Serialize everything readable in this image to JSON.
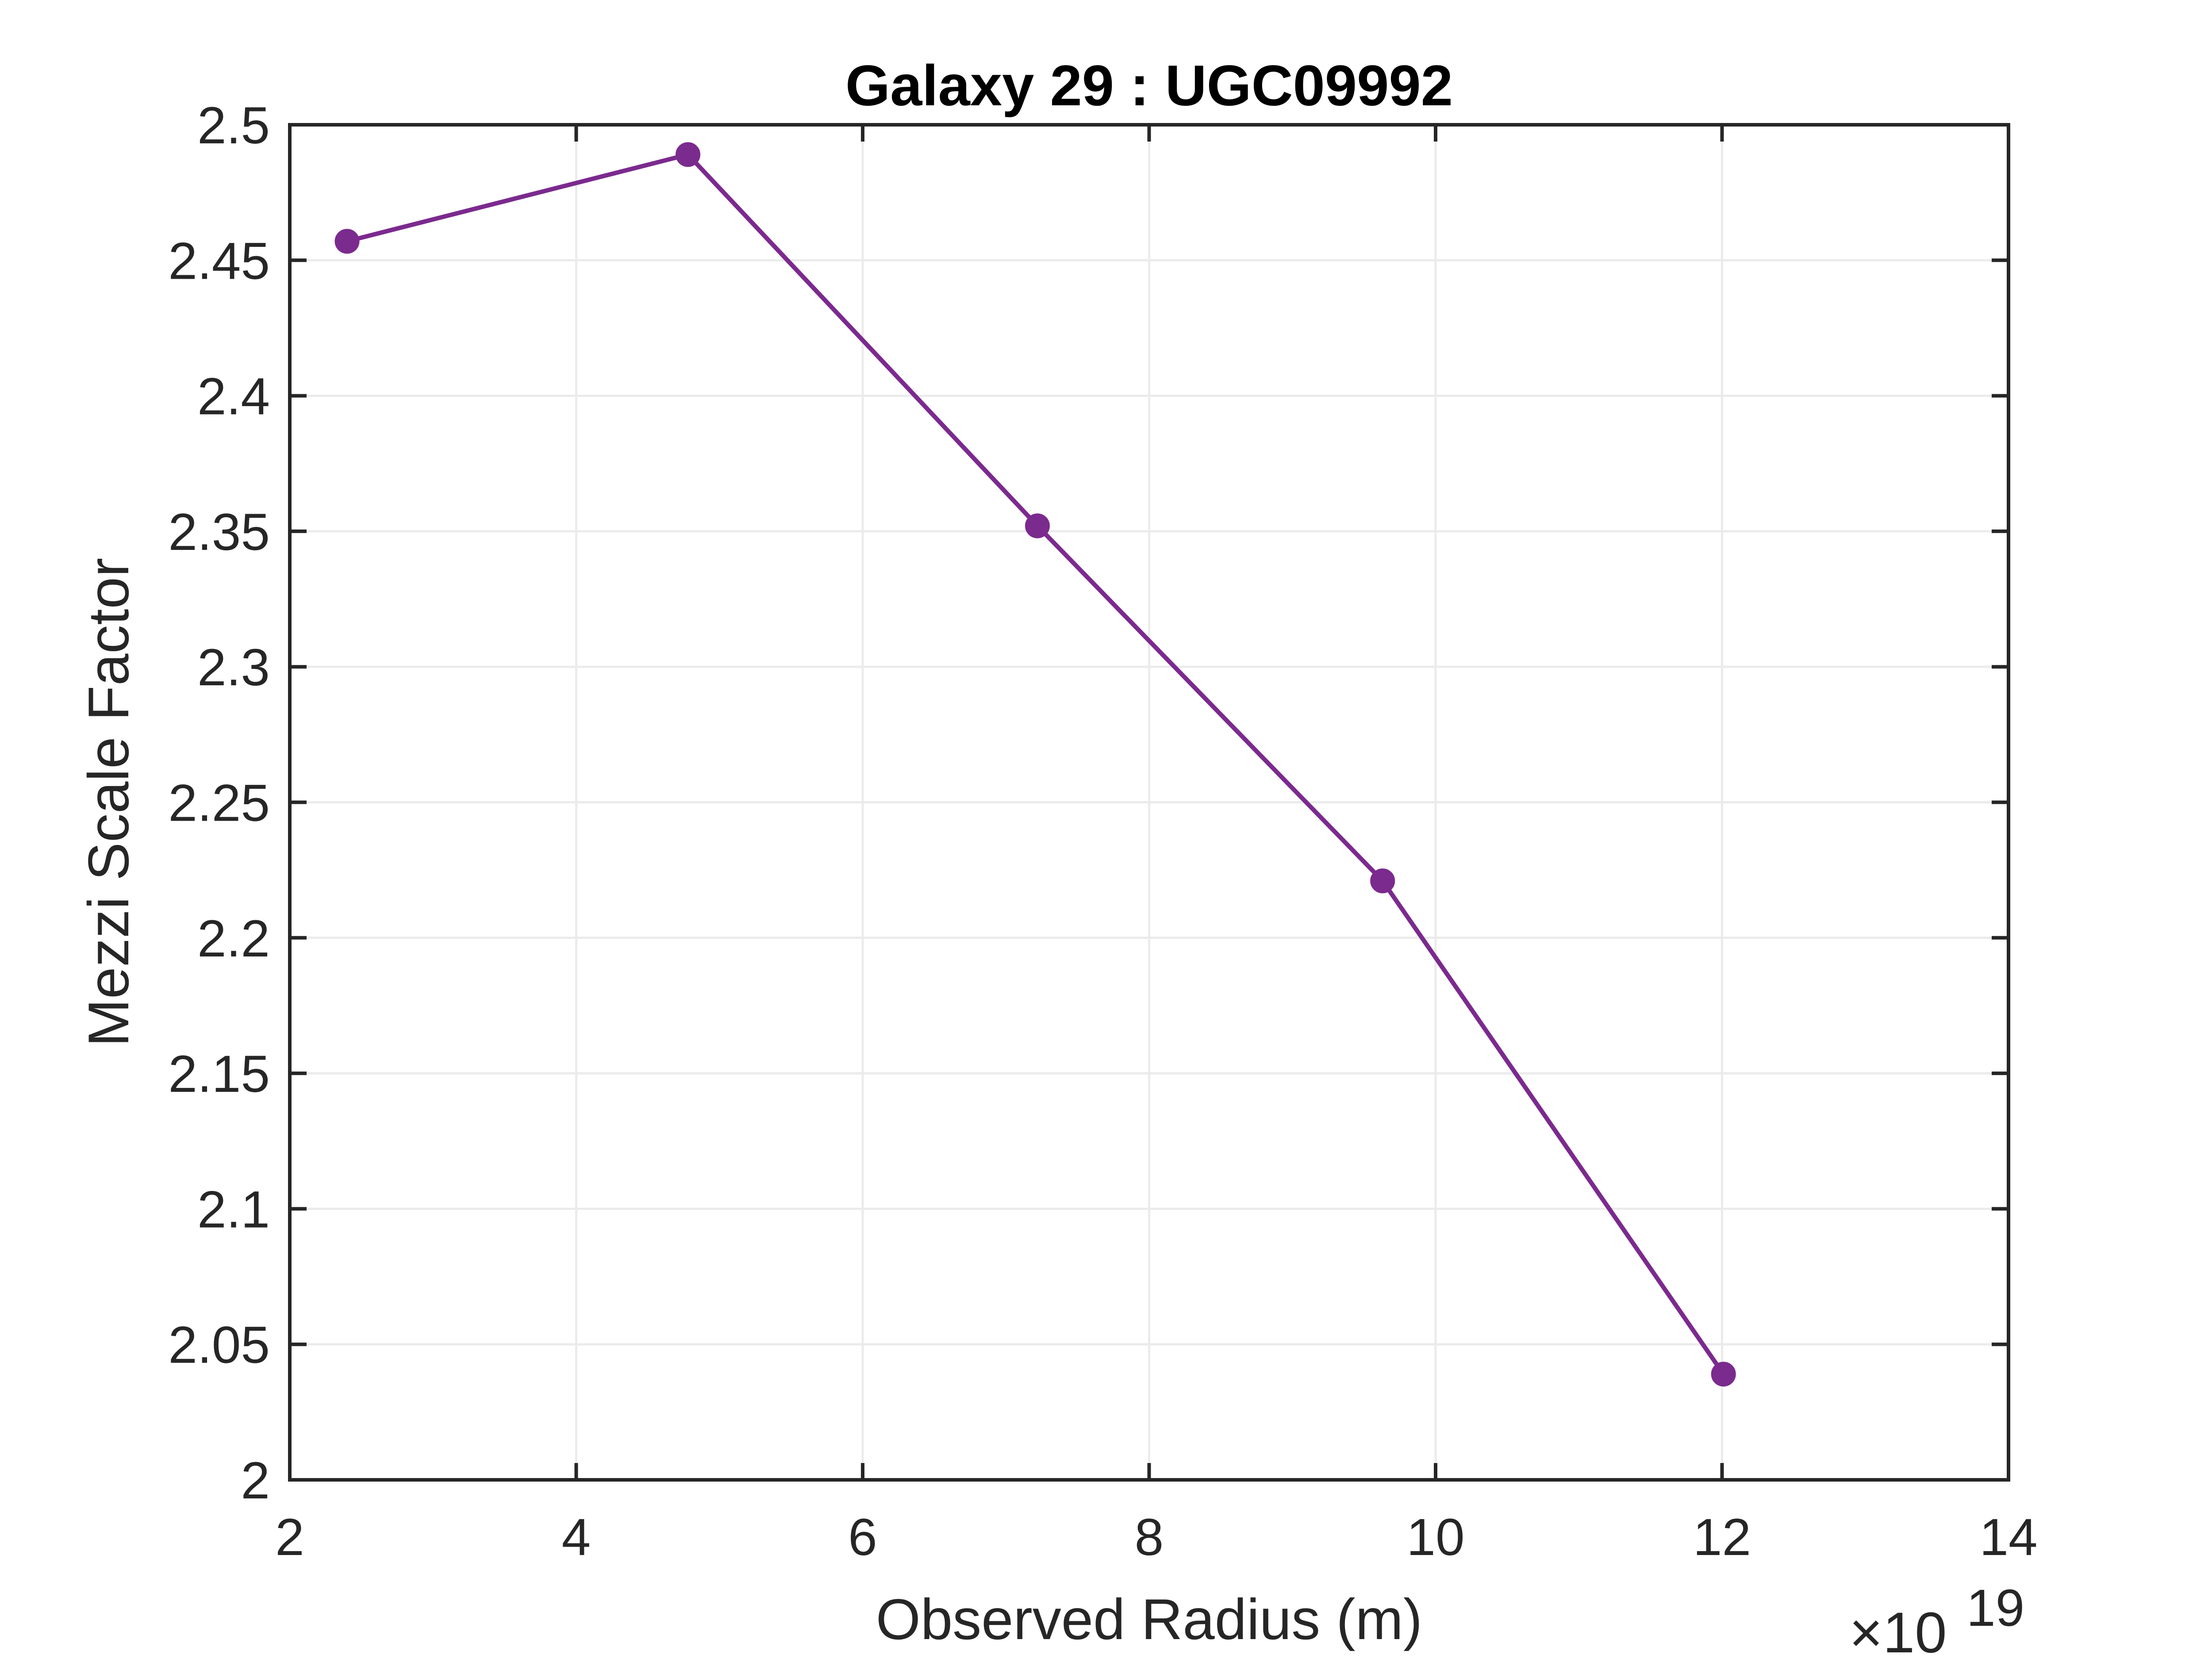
{
  "chart_data": {
    "type": "line",
    "title": "Galaxy 29 : UGC09992",
    "xlabel": "Observed Radius (m)",
    "ylabel": "Mezzi Scale Factor",
    "x_exponent_label": {
      "base": "×10",
      "exponent": "19"
    },
    "xlim": [
      2,
      14
    ],
    "ylim": [
      2,
      2.5
    ],
    "xticks": [
      2,
      4,
      6,
      8,
      10,
      12,
      14
    ],
    "xtick_labels": [
      "2",
      "4",
      "6",
      "8",
      "10",
      "12",
      "14"
    ],
    "yticks": [
      2,
      2.05,
      2.1,
      2.15,
      2.2,
      2.25,
      2.3,
      2.35,
      2.4,
      2.45,
      2.5
    ],
    "ytick_labels": [
      "2",
      "2.05",
      "2.1",
      "2.15",
      "2.2",
      "2.25",
      "2.3",
      "2.35",
      "2.4",
      "2.45",
      "2.5"
    ],
    "grid": true,
    "series": [
      {
        "color": "#7B2A8E",
        "marker": "circle",
        "x": [
          2.4,
          4.78,
          7.22,
          9.63,
          12.01
        ],
        "y": [
          2.457,
          2.489,
          2.352,
          2.221,
          2.039
        ]
      }
    ]
  }
}
